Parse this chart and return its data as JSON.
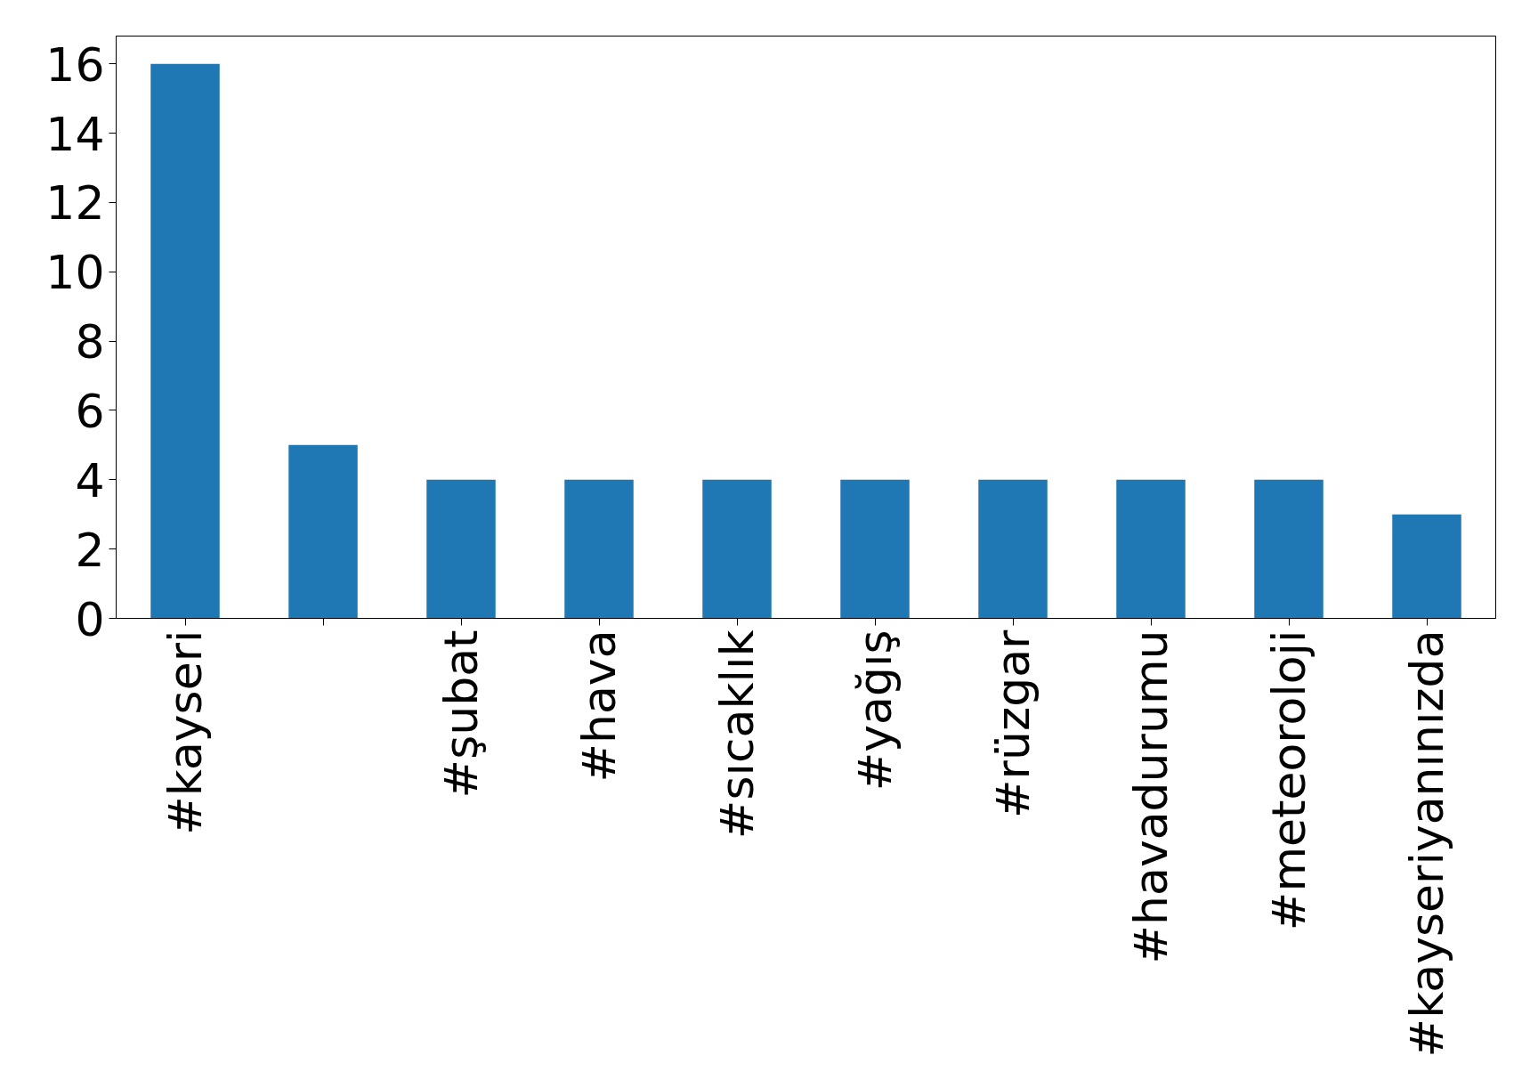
{
  "chart_data": {
    "type": "bar",
    "categories": [
      "#kayseri",
      null,
      "#şubat",
      "#hava",
      "#sıcaklık",
      "#yağış",
      "#rüzgar",
      "#havadurumu",
      "#meteoroloji",
      "#kayseriyanınızda"
    ],
    "values": [
      16,
      5,
      4,
      4,
      4,
      4,
      4,
      4,
      4,
      3
    ],
    "color": "#1f77b4",
    "ylim": [
      0,
      16.8
    ],
    "yticks": [
      0,
      2,
      4,
      6,
      8,
      10,
      12,
      14,
      16
    ],
    "grid": false
  }
}
